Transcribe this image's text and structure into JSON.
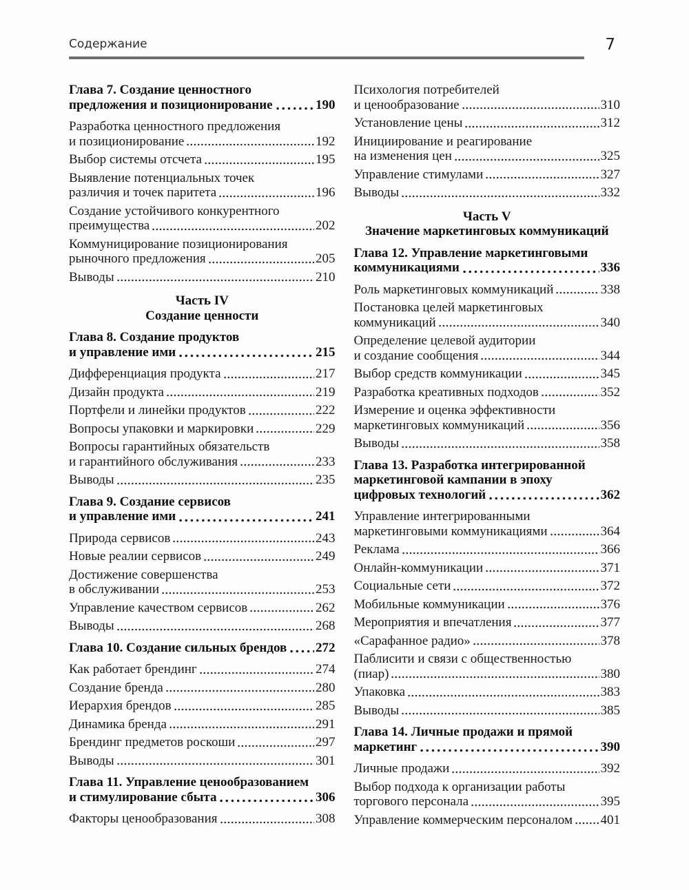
{
  "header": {
    "title": "Содержание",
    "page_number": "7"
  },
  "colors": {
    "rule": "#6e6e6e",
    "text": "#1b1b1b"
  },
  "columns": [
    {
      "blocks": [
        {
          "type": "chapter",
          "lines": [
            "Глава 7. Создание ценностного",
            "предложения и позиционирование"
          ],
          "page": "190"
        },
        {
          "type": "entry",
          "lines": [
            "Разработка ценностного предложения",
            "и позиционирование"
          ],
          "page": "192"
        },
        {
          "type": "entry",
          "lines": [
            "Выбор системы отсчета"
          ],
          "page": "195"
        },
        {
          "type": "entry",
          "lines": [
            "Выявление потенциальных точек",
            "различия и точек паритета"
          ],
          "page": "196"
        },
        {
          "type": "entry",
          "lines": [
            "Создание устойчивого конкурентного",
            "преимущества"
          ],
          "page": "202"
        },
        {
          "type": "entry",
          "lines": [
            "Коммуницирование позиционирования",
            "рыночного предложения"
          ],
          "page": "205"
        },
        {
          "type": "entry",
          "lines": [
            "Выводы"
          ],
          "page": "210"
        },
        {
          "type": "part",
          "lines": [
            "Часть IV",
            "Создание ценности"
          ]
        },
        {
          "type": "chapter",
          "lines": [
            "Глава 8. Создание продуктов",
            "и управление ими"
          ],
          "page": "215"
        },
        {
          "type": "entry",
          "lines": [
            "Дифференциация продукта"
          ],
          "page": "217"
        },
        {
          "type": "entry",
          "lines": [
            "Дизайн продукта"
          ],
          "page": "219"
        },
        {
          "type": "entry",
          "lines": [
            "Портфели и линейки продуктов"
          ],
          "page": "222"
        },
        {
          "type": "entry",
          "lines": [
            "Вопросы упаковки и маркировки"
          ],
          "page": "229"
        },
        {
          "type": "entry",
          "lines": [
            "Вопросы гарантийных обязательств",
            "и гарантийного обслуживания"
          ],
          "page": "233"
        },
        {
          "type": "entry",
          "lines": [
            "Выводы"
          ],
          "page": "235"
        },
        {
          "type": "chapter",
          "lines": [
            "Глава 9. Создание сервисов",
            "и управление ими"
          ],
          "page": "241"
        },
        {
          "type": "entry",
          "lines": [
            "Природа сервисов"
          ],
          "page": "243"
        },
        {
          "type": "entry",
          "lines": [
            "Новые реалии сервисов"
          ],
          "page": "249"
        },
        {
          "type": "entry",
          "lines": [
            "Достижение совершенства",
            "в обслуживании"
          ],
          "page": "253"
        },
        {
          "type": "entry",
          "lines": [
            "Управление качеством сервисов"
          ],
          "page": "262"
        },
        {
          "type": "entry",
          "lines": [
            "Выводы"
          ],
          "page": "268"
        },
        {
          "type": "chapter",
          "lines": [
            "Глава 10. Создание сильных брендов"
          ],
          "page": "272"
        },
        {
          "type": "entry",
          "lines": [
            "Как работает брендинг"
          ],
          "page": "274"
        },
        {
          "type": "entry",
          "lines": [
            "Создание бренда"
          ],
          "page": "280"
        },
        {
          "type": "entry",
          "lines": [
            "Иерархия брендов"
          ],
          "page": "285"
        },
        {
          "type": "entry",
          "lines": [
            "Динамика бренда"
          ],
          "page": "291"
        },
        {
          "type": "entry",
          "lines": [
            "Брендинг предметов роскоши"
          ],
          "page": "297"
        },
        {
          "type": "entry",
          "lines": [
            "Выводы"
          ],
          "page": "301"
        },
        {
          "type": "chapter",
          "lines": [
            "Глава 11. Управление ценообразованием",
            "и стимулирование сбыта"
          ],
          "page": "306"
        },
        {
          "type": "entry",
          "lines": [
            "Факторы ценообразования"
          ],
          "page": "308"
        }
      ]
    },
    {
      "blocks": [
        {
          "type": "entry",
          "lines": [
            "Психология потребителей",
            "и ценообразование"
          ],
          "page": "310"
        },
        {
          "type": "entry",
          "lines": [
            "Установление цены"
          ],
          "page": "312"
        },
        {
          "type": "entry",
          "lines": [
            "Инициирование и реагирование",
            "на изменения цен"
          ],
          "page": "325"
        },
        {
          "type": "entry",
          "lines": [
            "Управление стимулами"
          ],
          "page": "327"
        },
        {
          "type": "entry",
          "lines": [
            "Выводы"
          ],
          "page": "332"
        },
        {
          "type": "part",
          "lines": [
            "Часть V",
            "Значение маркетинговых коммуникаций"
          ]
        },
        {
          "type": "chapter",
          "lines": [
            "Глава 12. Управление маркетинговыми",
            "коммуникациями"
          ],
          "page": "336"
        },
        {
          "type": "entry",
          "lines": [
            "Роль маркетинговых коммуникаций"
          ],
          "page": "338"
        },
        {
          "type": "entry",
          "lines": [
            "Постановка целей маркетинговых",
            "коммуникаций"
          ],
          "page": "340"
        },
        {
          "type": "entry",
          "lines": [
            "Определение целевой аудитории",
            "и создание сообщения"
          ],
          "page": "344"
        },
        {
          "type": "entry",
          "lines": [
            "Выбор средств коммуникации"
          ],
          "page": "345"
        },
        {
          "type": "entry",
          "lines": [
            "Разработка креативных подходов"
          ],
          "page": "352"
        },
        {
          "type": "entry",
          "lines": [
            "Измерение и оценка эффективности",
            "маркетинговых коммуникаций"
          ],
          "page": "356"
        },
        {
          "type": "entry",
          "lines": [
            "Выводы"
          ],
          "page": "358"
        },
        {
          "type": "chapter",
          "lines": [
            "Глава 13. Разработка интегрированной",
            "маркетинговой кампании в эпоху",
            "цифровых технологий"
          ],
          "page": "362"
        },
        {
          "type": "entry",
          "lines": [
            "Управление интегрированными",
            "маркетинговыми коммуникациями"
          ],
          "page": "364"
        },
        {
          "type": "entry",
          "lines": [
            "Реклама"
          ],
          "page": "366"
        },
        {
          "type": "entry",
          "lines": [
            "Онлайн-коммуникации"
          ],
          "page": "371"
        },
        {
          "type": "entry",
          "lines": [
            "Социальные сети"
          ],
          "page": "372"
        },
        {
          "type": "entry",
          "lines": [
            "Мобильные коммуникации"
          ],
          "page": "376"
        },
        {
          "type": "entry",
          "lines": [
            "Мероприятия и впечатления"
          ],
          "page": "377"
        },
        {
          "type": "entry",
          "lines": [
            "«Сарафанное радио»"
          ],
          "page": "378"
        },
        {
          "type": "entry",
          "lines": [
            "Паблисити и связи с общественностью",
            "(пиар)"
          ],
          "page": "380"
        },
        {
          "type": "entry",
          "lines": [
            "Упаковка"
          ],
          "page": "383"
        },
        {
          "type": "entry",
          "lines": [
            "Выводы"
          ],
          "page": "385"
        },
        {
          "type": "chapter",
          "lines": [
            "Глава 14. Личные продажи и прямой",
            "маркетинг"
          ],
          "page": "390"
        },
        {
          "type": "entry",
          "lines": [
            "Личные продажи"
          ],
          "page": "392"
        },
        {
          "type": "entry",
          "lines": [
            "Выбор подхода к организации работы",
            "торгового персонала"
          ],
          "page": "395"
        },
        {
          "type": "entry",
          "lines": [
            "Управление коммерческим персоналом"
          ],
          "page": "401"
        }
      ]
    }
  ]
}
